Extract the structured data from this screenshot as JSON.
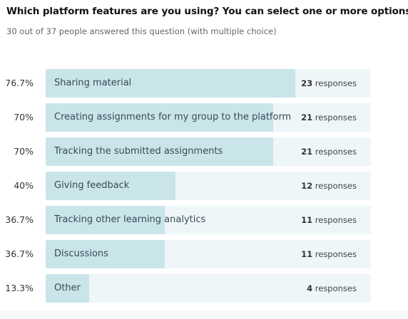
{
  "question": {
    "title": "Which platform features are you using? You can select one or more options.",
    "subtitle": "30 out of 37 people answered this question (with multiple choice)"
  },
  "responses_word": "responses",
  "chart_data": {
    "type": "bar",
    "orientation": "horizontal",
    "xlim": [
      0,
      100
    ],
    "categories": [
      "Sharing material",
      "Creating assignments for my group to the platform",
      "Tracking the submitted assignments",
      "Giving feedback",
      "Tracking other learning analytics",
      "Discussions",
      "Other"
    ],
    "percent_labels": [
      "76.7%",
      "70%",
      "70%",
      "40%",
      "36.7%",
      "36.7%",
      "13.3%"
    ],
    "values": [
      76.7,
      70,
      70,
      40,
      36.7,
      36.7,
      13.3
    ],
    "counts": [
      23,
      21,
      21,
      12,
      11,
      11,
      4
    ],
    "colors": {
      "track": "#eef6f8",
      "fill": "#c9e5ea"
    }
  }
}
